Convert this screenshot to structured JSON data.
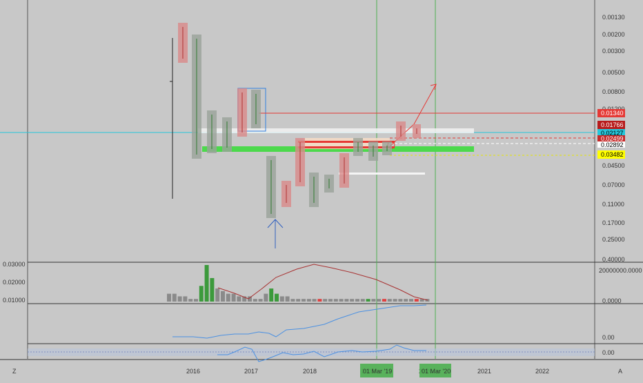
{
  "price_axis": {
    "labels": [
      "0.00130",
      "0.00200",
      "0.00300",
      "0.00500",
      "0.00800",
      "0.01200",
      "0.01766",
      "0.02127",
      "0.02499",
      "0.02892",
      "0.03482",
      "0.04500",
      "0.07000",
      "0.11000",
      "0.17000",
      "0.25000",
      "0.40000"
    ],
    "tags": [
      {
        "value": "0.01340",
        "bg": "#e53935",
        "fg": "#ffffff"
      },
      {
        "value": "0.01766",
        "bg": "#b71c1c",
        "fg": "#ffffff"
      },
      {
        "value": "0.02127",
        "bg": "#26c6da",
        "fg": "#000000"
      },
      {
        "value": "0.02499",
        "bg": "#c62828",
        "fg": "#ffffff"
      },
      {
        "value": "0.02892",
        "bg": "#ffffff",
        "fg": "#000000"
      },
      {
        "value": "0.03482",
        "bg": "#ffff00",
        "fg": "#000000"
      }
    ]
  },
  "volume_pane": {
    "left_labels": [
      "0.03000",
      "0.02000",
      "0.01000"
    ],
    "right_labels": [
      "20000000.0000",
      "0.0000"
    ],
    "bars": [
      3,
      3,
      2,
      2,
      1,
      1,
      6,
      14,
      9,
      5,
      4,
      3,
      3,
      2,
      2,
      2,
      1,
      1,
      3,
      5,
      3,
      2,
      2,
      1,
      1,
      1,
      1,
      1,
      1,
      1,
      1,
      1,
      1,
      1,
      1,
      1,
      1,
      1,
      1,
      1,
      1,
      1,
      1,
      1,
      1,
      1,
      1,
      1,
      1
    ],
    "bar_colors": [
      "#8a8a8a",
      "#8a8a8a",
      "#8a8a8a",
      "#8a8a8a",
      "#8a8a8a",
      "#8a8a8a",
      "#3c9a3c",
      "#3c9a3c",
      "#3c9a3c",
      "#8a8a8a",
      "#8a8a8a",
      "#8a8a8a",
      "#8a8a8a",
      "#8a8a8a",
      "#8a8a8a",
      "#8a8a8a",
      "#8a8a8a",
      "#8a8a8a",
      "#8a8a8a",
      "#3c9a3c",
      "#3c9a3c",
      "#8a8a8a",
      "#8a8a8a",
      "#8a8a8a",
      "#8a8a8a",
      "#8a8a8a",
      "#8a8a8a",
      "#8a8a8a",
      "#e04040",
      "#8a8a8a",
      "#8a8a8a",
      "#8a8a8a",
      "#8a8a8a",
      "#8a8a8a",
      "#8a8a8a",
      "#8a8a8a",
      "#8a8a8a",
      "#3c9a3c",
      "#8a8a8a",
      "#8a8a8a",
      "#e04040",
      "#8a8a8a",
      "#8a8a8a",
      "#8a8a8a",
      "#8a8a8a",
      "#8a8a8a",
      "#e04040",
      "#8a8a8a",
      "#8a8a8a"
    ]
  },
  "obv_pane": {
    "right_labels": [
      "0.00"
    ]
  },
  "osc_pane": {
    "right_labels": [
      "0.00"
    ]
  },
  "time_axis": {
    "labels": [
      "2016",
      "2017",
      "2018",
      "2019",
      "2020",
      "2021",
      "2022"
    ],
    "highlights": [
      "01 Mar '19",
      "01 Mar '20"
    ]
  },
  "corners": {
    "left": "Z",
    "right": "A"
  },
  "colors": {
    "background": "#c8c8c8",
    "up": "#3c9a3c",
    "down": "#e04040",
    "highlight": "#4caf50",
    "cyan": "#26c6da"
  }
}
